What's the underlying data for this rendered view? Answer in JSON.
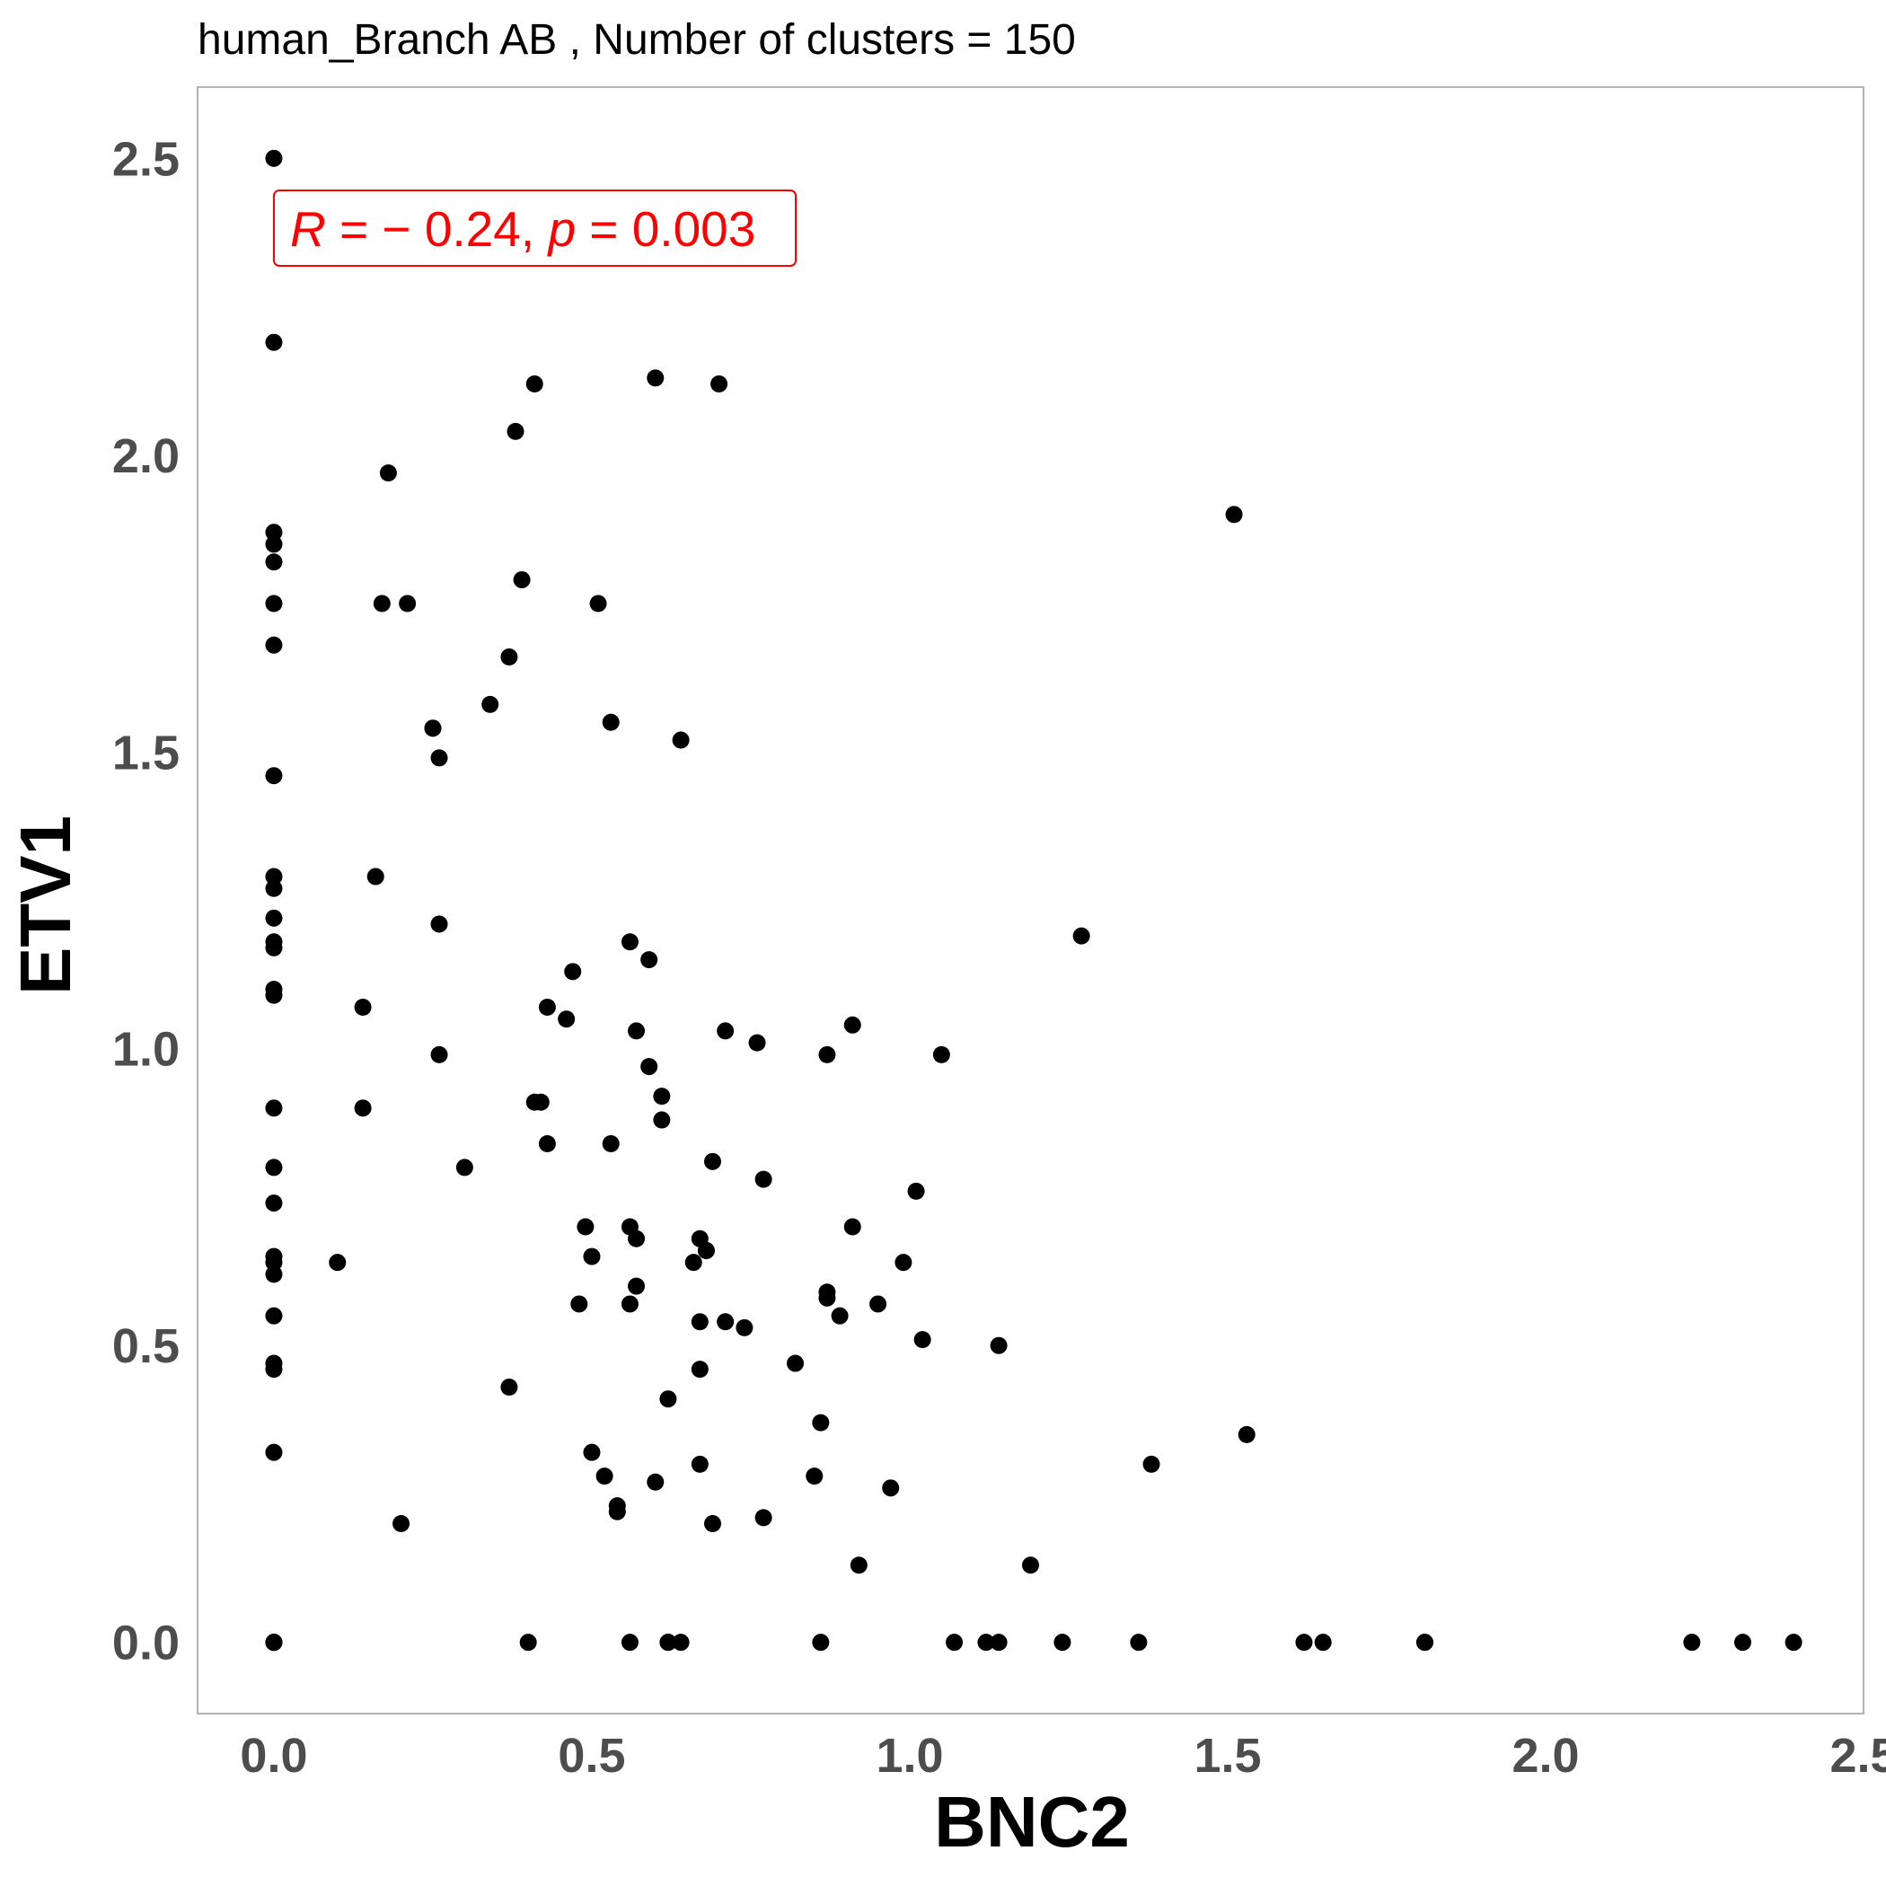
{
  "chart_data": {
    "type": "scatter",
    "title": "human_Branch AB , Number of clusters =  150",
    "xlabel": "BNC2",
    "ylabel": "ETV1",
    "xlim": [
      -0.12,
      2.5
    ],
    "ylim": [
      -0.12,
      2.62
    ],
    "x_ticks": [
      0.0,
      0.5,
      1.0,
      1.5,
      2.0,
      2.5
    ],
    "y_ticks": [
      0.0,
      0.5,
      1.0,
      1.5,
      2.0,
      2.5
    ],
    "x_tick_labels": [
      "0.0",
      "0.5",
      "1.0",
      "1.5",
      "2.0",
      "2.5"
    ],
    "y_tick_labels": [
      "0.0",
      "0.5",
      "1.0",
      "1.5",
      "2.0",
      "2.5"
    ],
    "grid": false,
    "point_color": "#000000",
    "annotation": {
      "r_symbol": "R",
      "r_text": " = − 0.24, ",
      "p_symbol": "p",
      "p_text": " = 0.003",
      "color": "#ff0000"
    },
    "series": [
      {
        "x": [
          0.0,
          0.0,
          0.0,
          0.0,
          0.0,
          0.0,
          0.0,
          0.0,
          0.0,
          0.0,
          0.0,
          0.0,
          0.0,
          0.0,
          0.0,
          0.0,
          0.0,
          0.0,
          0.0,
          0.0,
          0.0,
          0.0,
          0.0,
          0.0,
          0.0,
          0.0,
          0.0,
          0.0,
          0.0,
          0.1,
          0.14,
          0.14,
          0.16,
          0.17,
          0.18,
          0.2,
          0.21,
          0.25,
          0.25,
          0.26,
          0.26,
          0.26,
          0.3,
          0.34,
          0.37,
          0.37,
          0.38,
          0.39,
          0.4,
          0.41,
          0.41,
          0.42,
          0.43,
          0.43,
          0.46,
          0.47,
          0.48,
          0.49,
          0.5,
          0.5,
          0.51,
          0.52,
          0.53,
          0.53,
          0.54,
          0.54,
          0.56,
          0.56,
          0.56,
          0.56,
          0.57,
          0.57,
          0.57,
          0.59,
          0.59,
          0.6,
          0.6,
          0.61,
          0.61,
          0.62,
          0.62,
          0.62,
          0.64,
          0.64,
          0.66,
          0.67,
          0.67,
          0.67,
          0.67,
          0.68,
          0.68,
          0.69,
          0.69,
          0.7,
          0.71,
          0.71,
          0.74,
          0.76,
          0.77,
          0.77,
          0.82,
          0.85,
          0.86,
          0.86,
          0.87,
          0.87,
          0.87,
          0.89,
          0.91,
          0.91,
          0.92,
          0.95,
          0.97,
          0.99,
          1.01,
          1.02,
          1.05,
          1.07,
          1.12,
          1.14,
          1.14,
          1.19,
          1.24,
          1.27,
          1.36,
          1.38,
          1.51,
          1.53,
          1.62,
          1.65,
          1.81,
          1.81,
          2.23,
          2.31,
          2.39
        ],
        "y": [
          2.5,
          2.19,
          1.87,
          1.85,
          1.82,
          1.75,
          1.68,
          1.46,
          1.29,
          1.27,
          1.22,
          1.18,
          1.17,
          1.1,
          1.09,
          0.9,
          0.8,
          0.74,
          0.65,
          0.64,
          0.62,
          0.55,
          0.47,
          0.46,
          0.32,
          0.0,
          0.0,
          0.0,
          0.0,
          0.64,
          0.9,
          1.07,
          1.29,
          1.75,
          1.97,
          0.2,
          1.75,
          1.54,
          1.54,
          1.49,
          1.21,
          0.99,
          0.8,
          1.58,
          1.66,
          0.43,
          2.04,
          1.79,
          0.0,
          0.91,
          2.12,
          0.91,
          1.07,
          0.84,
          1.05,
          1.13,
          0.57,
          0.7,
          0.32,
          0.65,
          1.75,
          0.28,
          0.84,
          1.55,
          0.22,
          0.23,
          0.7,
          0.57,
          1.18,
          0.0,
          1.03,
          0.6,
          0.68,
          1.15,
          0.97,
          2.13,
          0.27,
          0.92,
          0.88,
          0.41,
          0.0,
          0.0,
          1.52,
          0.0,
          0.64,
          0.68,
          0.54,
          0.46,
          0.3,
          0.66,
          0.66,
          0.81,
          0.2,
          2.12,
          1.03,
          0.54,
          0.53,
          1.01,
          0.78,
          0.21,
          0.47,
          0.28,
          0.37,
          0.0,
          0.99,
          0.58,
          0.59,
          0.55,
          1.04,
          0.7,
          0.13,
          0.57,
          0.26,
          0.64,
          0.76,
          0.51,
          0.99,
          0.0,
          0.0,
          0.0,
          0.5,
          0.13,
          0.0,
          1.19,
          0.0,
          0.3,
          1.9,
          0.35,
          0.0,
          0.0,
          0.0,
          0.0,
          0.0,
          0.0,
          0.0
        ]
      }
    ]
  }
}
